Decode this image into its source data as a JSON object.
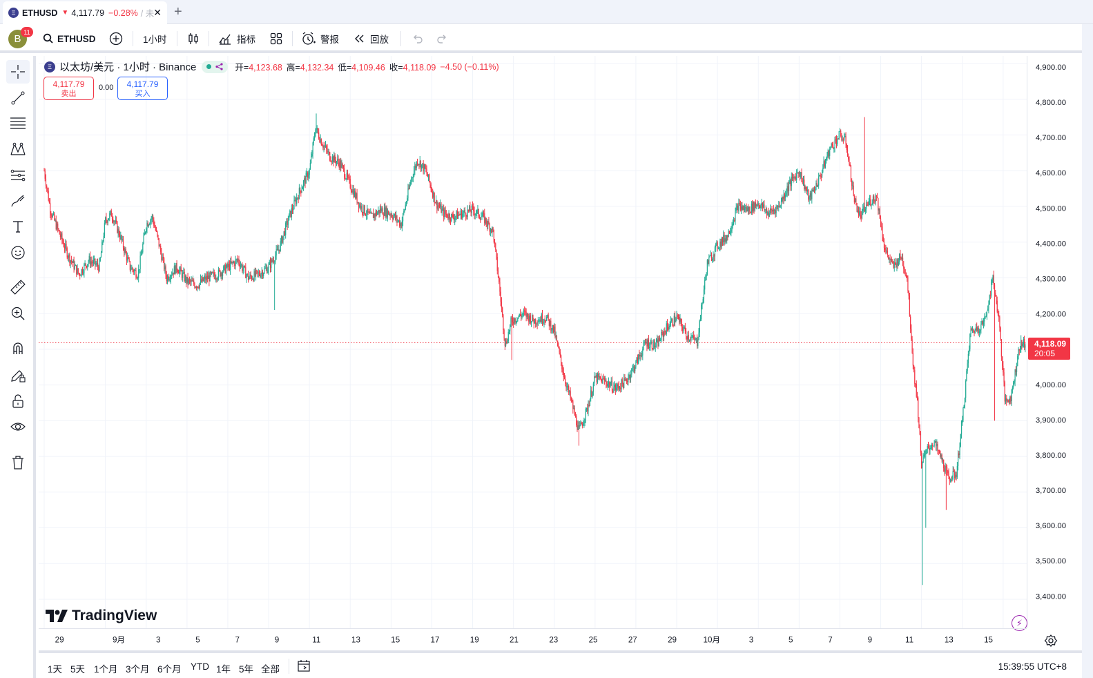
{
  "tab": {
    "symbol": "ETHUSD",
    "arrow": "▼",
    "price": "4,117.79",
    "change": "−0.28%",
    "sep": "/ 未",
    "close": "✕",
    "new_tab": "+"
  },
  "toolbar": {
    "avatar_letter": "B",
    "notifications": "11",
    "symbol": "ETHUSD",
    "interval": "1小时",
    "indicators": "指标",
    "alerts": "警报",
    "replay": "回放"
  },
  "legend": {
    "coin_icon": "Ξ",
    "title": "以太坊/美元 · 1小时 · Binance",
    "open_label": "开=",
    "open": "4,123.68",
    "high_label": "高=",
    "high": "4,132.34",
    "low_label": "低=",
    "low": "4,109.46",
    "close_label": "收=",
    "close": "4,118.09",
    "change": "−4.50 (−0.11%)"
  },
  "trade": {
    "sell_price": "4,117.79",
    "sell_label": "卖出",
    "spread": "0.00",
    "buy_price": "4,117.79",
    "buy_label": "买入"
  },
  "branding": {
    "logo_text": "TradingView"
  },
  "current_price": {
    "price": "4,118.09",
    "countdown": "20:05"
  },
  "bottom": {
    "ranges": [
      "1天",
      "5天",
      "1个月",
      "3个月",
      "6个月",
      "YTD",
      "1年",
      "5年",
      "全部"
    ],
    "clock": "15:39:55 UTC+8"
  },
  "colors": {
    "up": "#22ab94",
    "down": "#f23645",
    "accent": "#2962ff"
  },
  "chart_data": {
    "type": "candlestick",
    "title": "以太坊/美元 · 1小时 · Binance",
    "ylim": [
      3350,
      4950
    ],
    "y_ticks": [
      "4,900.00",
      "4,800.00",
      "4,700.00",
      "4,600.00",
      "4,500.00",
      "4,400.00",
      "4,300.00",
      "4,200.00",
      "4,100.00",
      "4,000.00",
      "3,900.00",
      "3,800.00",
      "3,700.00",
      "3,600.00",
      "3,500.00",
      "3,400.00"
    ],
    "y_tick_values": [
      4900,
      4800,
      4700,
      4600,
      4500,
      4400,
      4300,
      4200,
      4100,
      4000,
      3900,
      3800,
      3700,
      3600,
      3500,
      3400
    ],
    "x_ticks": [
      "29",
      "9月",
      "3",
      "5",
      "7",
      "9",
      "11",
      "13",
      "15",
      "17",
      "19",
      "21",
      "23",
      "25",
      "27",
      "29",
      "10月",
      "3",
      "5",
      "7",
      "9",
      "11",
      "13",
      "15"
    ],
    "x_tick_days": [
      0,
      3,
      5,
      7,
      9,
      11,
      13,
      15,
      17,
      19,
      21,
      23,
      25,
      27,
      29,
      31,
      33,
      35,
      37,
      39,
      41,
      43,
      45,
      47
    ],
    "x_range_days": [
      0,
      48.3
    ],
    "grid": true,
    "last_price": 4118.09,
    "price_path_days": [
      0,
      0.3,
      0.7,
      1.2,
      1.7,
      2.2,
      2.7,
      3.0,
      3.3,
      3.7,
      4.2,
      4.6,
      5.0,
      5.3,
      5.6,
      6.0,
      6.5,
      7.0,
      7.5,
      8.0,
      8.5,
      9.0,
      9.5,
      10.0,
      10.5,
      11.0,
      11.5,
      12.0,
      12.5,
      13.0,
      13.3,
      13.6,
      14.0,
      14.5,
      15.0,
      15.5,
      16.0,
      16.5,
      17.0,
      17.5,
      18.0,
      18.3,
      18.7,
      19.2,
      19.6,
      20.0,
      20.5,
      21.0,
      21.5,
      22.0,
      22.3,
      22.6,
      22.9,
      23.5,
      24.0,
      24.6,
      25.0,
      25.5,
      25.9,
      26.2,
      26.6,
      27.0,
      27.5,
      28.0,
      28.5,
      29.0,
      29.5,
      30.0,
      30.5,
      31.0,
      31.5,
      32.0,
      32.5,
      33.0,
      33.5,
      34.0,
      34.5,
      35.0,
      35.5,
      36.0,
      36.5,
      37.0,
      37.5,
      38.0,
      38.5,
      39.0,
      39.3,
      39.7,
      40.0,
      40.4,
      40.8,
      41.2,
      41.6,
      42.0,
      42.3,
      42.6,
      42.8,
      43.0,
      43.3,
      43.6,
      44.0,
      44.3,
      44.7,
      45.0,
      45.4,
      45.8,
      46.1,
      46.5,
      46.8,
      47.1,
      47.4,
      47.8,
      48.1
    ],
    "price_path_values": [
      4600,
      4490,
      4430,
      4360,
      4310,
      4350,
      4330,
      4460,
      4480,
      4420,
      4330,
      4310,
      4450,
      4470,
      4400,
      4300,
      4330,
      4290,
      4280,
      4300,
      4310,
      4330,
      4350,
      4300,
      4310,
      4330,
      4380,
      4470,
      4540,
      4600,
      4720,
      4680,
      4640,
      4620,
      4560,
      4500,
      4470,
      4490,
      4480,
      4450,
      4580,
      4630,
      4600,
      4510,
      4480,
      4470,
      4480,
      4490,
      4470,
      4430,
      4280,
      4110,
      4180,
      4200,
      4180,
      4190,
      4150,
      4020,
      3940,
      3870,
      3930,
      4020,
      4010,
      3990,
      4010,
      4060,
      4120,
      4110,
      4160,
      4190,
      4140,
      4120,
      4340,
      4390,
      4420,
      4500,
      4490,
      4510,
      4480,
      4500,
      4560,
      4600,
      4520,
      4580,
      4660,
      4700,
      4680,
      4520,
      4470,
      4510,
      4530,
      4380,
      4330,
      4360,
      4300,
      4050,
      3950,
      3780,
      3820,
      3840,
      3790,
      3740,
      3750,
      3900,
      4150,
      4160,
      4180,
      4300,
      4180,
      3950,
      3970,
      4110,
      4120
    ]
  }
}
